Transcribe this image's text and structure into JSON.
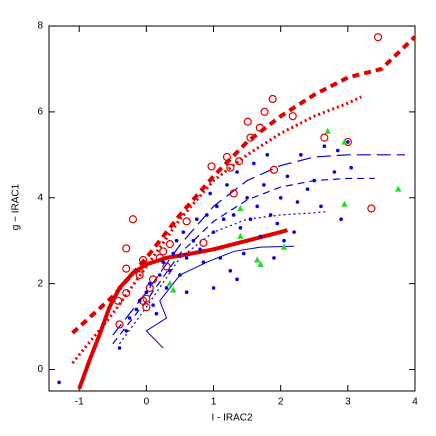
{
  "chart_data": {
    "type": "scatter",
    "x_label": "I - IRAC2",
    "y_label": "g − IRAC1",
    "xlim": [
      -1.45,
      4.0
    ],
    "ylim": [
      -0.5,
      8.0
    ],
    "xticks": [
      -1,
      0,
      1,
      2,
      3,
      4
    ],
    "yticks": [
      0,
      2,
      4,
      6,
      8
    ],
    "series": [
      {
        "type": "line",
        "color": "#e00000",
        "width": 4,
        "dash": "solid",
        "x": [
          -1.0,
          -0.85,
          -0.7,
          -0.55,
          -0.4,
          -0.2,
          0,
          0.3,
          0.6,
          1.0,
          1.5,
          2.0,
          2.1
        ],
        "values": [
          -0.45,
          0.2,
          0.8,
          1.45,
          1.9,
          2.25,
          2.45,
          2.6,
          2.68,
          2.8,
          3.0,
          3.2,
          3.25
        ]
      },
      {
        "type": "line",
        "color": "#e00000",
        "width": 4,
        "dash": "dashed",
        "x": [
          -1.1,
          -0.5,
          0,
          0.5,
          1.0,
          1.5,
          2.0,
          2.5,
          3.0,
          3.5,
          4.0
        ],
        "values": [
          0.85,
          1.7,
          2.6,
          3.6,
          4.5,
          5.3,
          5.9,
          6.4,
          6.8,
          7.0,
          7.75
        ]
      },
      {
        "type": "line",
        "color": "#e00000",
        "width": 3,
        "dash": "dotted",
        "x": [
          -1.1,
          -0.5,
          0,
          0.5,
          1.0,
          1.5,
          2.0,
          2.5,
          3.0,
          3.2
        ],
        "values": [
          0.15,
          1.3,
          2.4,
          3.5,
          4.4,
          5.0,
          5.5,
          5.9,
          6.2,
          6.35
        ]
      },
      {
        "type": "line",
        "color": "#0000cc",
        "width": 1.2,
        "dash": "long-dashed",
        "x": [
          -0.5,
          0,
          0.5,
          1.0,
          1.5,
          2.0,
          2.5,
          3.0,
          3.85
        ],
        "values": [
          0.8,
          1.8,
          2.9,
          3.8,
          4.4,
          4.75,
          4.95,
          5.0,
          5.0
        ]
      },
      {
        "type": "line",
        "color": "#0000cc",
        "width": 1.2,
        "dash": "dashed",
        "x": [
          -0.5,
          0,
          0.5,
          1.0,
          1.5,
          2.0,
          2.5,
          3.0,
          3.4
        ],
        "values": [
          0.6,
          1.6,
          2.7,
          3.45,
          3.95,
          4.25,
          4.4,
          4.45,
          4.45
        ]
      },
      {
        "type": "line",
        "color": "#0000cc",
        "width": 1.2,
        "dash": "dotted",
        "x": [
          -0.4,
          0,
          0.5,
          1.0,
          1.5,
          2.0,
          2.5,
          2.7
        ],
        "values": [
          0.6,
          1.45,
          2.6,
          3.2,
          3.5,
          3.6,
          3.65,
          3.68
        ]
      },
      {
        "type": "line",
        "color": "#0000cc",
        "width": 1,
        "dash": "solid",
        "x": [
          0.25,
          0,
          0.3,
          0.2,
          0.5,
          0.9,
          1.3,
          1.7,
          2.2
        ],
        "values": [
          0.5,
          0.9,
          1.2,
          1.6,
          2.2,
          2.5,
          2.75,
          2.85,
          2.87
        ]
      },
      {
        "type": "scatter",
        "marker": "circle-open",
        "color": "#e00000",
        "x": [
          3.45,
          1.88,
          1.76,
          2.18,
          1.51,
          1.69,
          1.55,
          2.65,
          3.0,
          0.97,
          1.25,
          1.38,
          1.2,
          1.9,
          1.3,
          3.35,
          -0.2,
          0.6,
          -0.3,
          0.25,
          0.85,
          0.35,
          0.2,
          0.3,
          -0.05,
          -0.3,
          -0.1,
          0.1,
          -0.3,
          -0.42,
          0.05,
          -0.05,
          0.0,
          -0.4,
          0.0
        ],
        "values": [
          7.74,
          6.3,
          6.0,
          5.9,
          5.77,
          5.63,
          5.4,
          5.4,
          5.3,
          4.73,
          4.7,
          4.85,
          4.95,
          4.65,
          4.1,
          3.75,
          3.5,
          3.45,
          2.82,
          2.75,
          2.95,
          2.92,
          2.6,
          2.4,
          2.55,
          2.35,
          2.2,
          2.1,
          1.78,
          1.6,
          1.9,
          1.6,
          1.45,
          1.05,
          1.65
        ]
      },
      {
        "type": "scatter",
        "marker": "dot",
        "color": "#0000dd",
        "x": [
          -1.3,
          -0.4,
          -0.3,
          -0.25,
          -0.15,
          -0.1,
          0,
          0.05,
          0.1,
          0.15,
          0.2,
          0.25,
          0.3,
          0.35,
          0.4,
          0.45,
          0.5,
          0.55,
          0.6,
          0.7,
          0.75,
          0.8,
          0.85,
          0.9,
          0.95,
          1.0,
          1.05,
          1.1,
          1.15,
          1.2,
          1.25,
          1.3,
          1.35,
          1.4,
          1.45,
          1.5,
          1.55,
          1.6,
          1.65,
          1.7,
          1.75,
          1.8,
          1.85,
          1.9,
          1.95,
          2.0,
          2.05,
          2.1,
          2.2,
          2.25,
          2.3,
          2.4,
          2.5,
          2.6,
          2.65,
          2.8,
          2.85,
          3.0,
          3.05,
          2.9,
          1.0,
          0.6,
          1.35
        ],
        "values": [
          -0.3,
          0.5,
          0.9,
          1.2,
          1.4,
          1.6,
          1.8,
          2.0,
          1.5,
          1.3,
          2.2,
          2.5,
          1.9,
          2.3,
          2.7,
          3.0,
          2.2,
          3.2,
          2.6,
          3.0,
          3.5,
          2.8,
          2.5,
          3.6,
          4.1,
          3.2,
          3.8,
          2.6,
          3.5,
          4.3,
          2.3,
          3.6,
          4.6,
          3.3,
          2.7,
          4.0,
          3.5,
          4.8,
          3.8,
          3.1,
          4.3,
          5.0,
          3.6,
          2.6,
          3.4,
          4.0,
          3.0,
          4.5,
          3.2,
          3.9,
          5.0,
          4.2,
          4.4,
          3.8,
          5.2,
          4.6,
          5.1,
          5.3,
          4.7,
          3.5,
          1.9,
          1.8,
          2.1
        ]
      },
      {
        "type": "scatter",
        "marker": "triangle",
        "color": "#22dd22",
        "x": [
          2.7,
          2.95,
          3.75,
          2.95,
          1.4,
          1.4,
          1.65,
          1.7,
          2.05,
          0.35,
          0.4
        ],
        "values": [
          5.55,
          5.3,
          4.2,
          3.85,
          3.75,
          3.1,
          2.55,
          2.45,
          2.85,
          2.0,
          1.85
        ]
      }
    ]
  }
}
